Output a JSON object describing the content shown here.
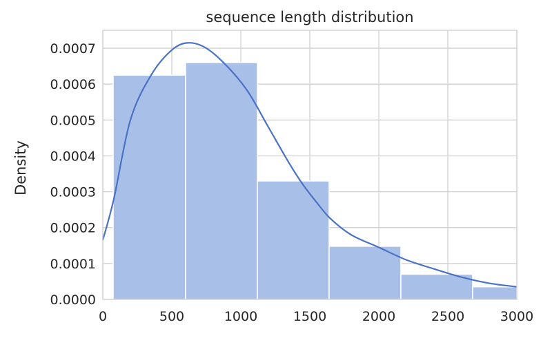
{
  "chart_data": {
    "type": "bar",
    "title": "sequence length distribution",
    "xlabel": "",
    "ylabel": "Density",
    "xlim": [
      0,
      3000
    ],
    "ylim": [
      0,
      0.00075
    ],
    "grid": true,
    "x_ticks": [
      0,
      500,
      1000,
      1500,
      2000,
      2500,
      3000
    ],
    "x_tick_labels": [
      "0",
      "500",
      "1000",
      "1500",
      "2000",
      "2500",
      "3000"
    ],
    "y_ticks": [
      0,
      0.0001,
      0.0002,
      0.0003,
      0.0004,
      0.0005,
      0.0006,
      0.0007
    ],
    "y_tick_labels": [
      "0.0000",
      "0.0001",
      "0.0002",
      "0.0003",
      "0.0004",
      "0.0005",
      "0.0006",
      "0.0007"
    ],
    "histogram": {
      "bins": [
        {
          "x0": 75,
          "x1": 600,
          "density": 0.000625
        },
        {
          "x0": 600,
          "x1": 1120,
          "density": 0.00066
        },
        {
          "x0": 1120,
          "x1": 1640,
          "density": 0.00033
        },
        {
          "x0": 1640,
          "x1": 2160,
          "density": 0.000148
        },
        {
          "x0": 2160,
          "x1": 2680,
          "density": 7e-05
        },
        {
          "x0": 2680,
          "x1": 3000,
          "density": 3.5e-05
        }
      ],
      "color": "#a8bfe8"
    },
    "kde": {
      "color": "#4a72c4",
      "x": [
        0,
        80,
        200,
        350,
        500,
        620,
        750,
        900,
        1050,
        1200,
        1350,
        1450,
        1550,
        1650,
        1800,
        2000,
        2200,
        2400,
        2600,
        2800,
        3000
      ],
      "y": [
        0.000165,
        0.00028,
        0.0005,
        0.000625,
        0.000695,
        0.000715,
        0.0007,
        0.00065,
        0.00058,
        0.00048,
        0.00038,
        0.00032,
        0.00027,
        0.000225,
        0.00018,
        0.000145,
        0.00011,
        8.5e-05,
        6.2e-05,
        4.5e-05,
        3.5e-05
      ]
    }
  }
}
